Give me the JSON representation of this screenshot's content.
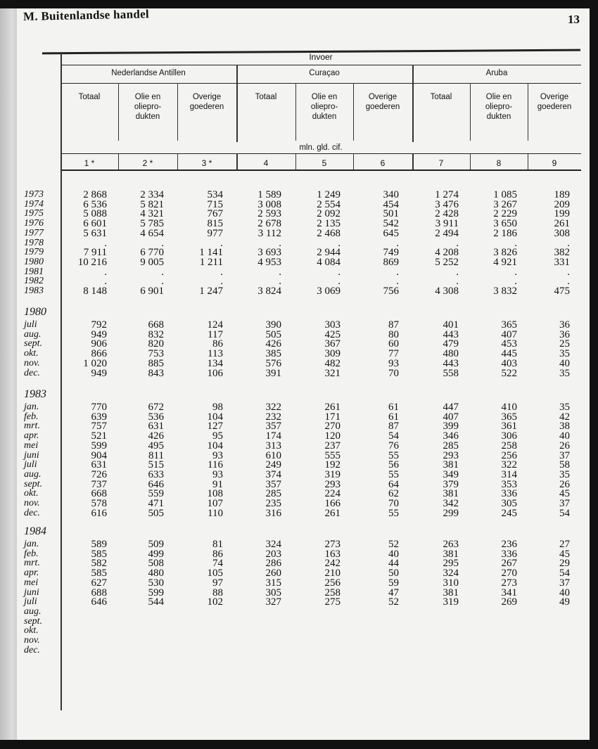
{
  "header": {
    "section": "M.  Buitenlandse  handel",
    "page_number": "13"
  },
  "table": {
    "title": "Invoer",
    "groups": [
      "Nederlandse Antillen",
      "Curaçao",
      "Aruba"
    ],
    "subcolumns": [
      "Totaal",
      "Olie en\noliepro-\ndukten",
      "Overige\ngoederen",
      "Totaal",
      "Olie en\noliepro-\ndukten",
      "Overige\ngoederen",
      "Totaal",
      "Olie en\noliepro-\ndukten",
      "Overige\ngoederen"
    ],
    "unit": "mln. gld. cif.",
    "column_numbers": [
      "1 *",
      "2 *",
      "3 *",
      "4",
      "5",
      "6",
      "7",
      "8",
      "9"
    ],
    "annual": [
      {
        "label": "1973",
        "values": [
          "2 868",
          "2 334",
          "534",
          "1 589",
          "1 249",
          "340",
          "1 274",
          "1 085",
          "189"
        ]
      },
      {
        "label": "1974",
        "values": [
          "6 536",
          "5 821",
          "715",
          "3 008",
          "2 554",
          "454",
          "3 476",
          "3 267",
          "209"
        ]
      },
      {
        "label": "1975",
        "values": [
          "5 088",
          "4 321",
          "767",
          "2 593",
          "2 092",
          "501",
          "2 428",
          "2 229",
          "199"
        ]
      },
      {
        "label": "1976",
        "values": [
          "6 601",
          "5 785",
          "815",
          "2 678",
          "2 135",
          "542",
          "3 911",
          "3 650",
          "261"
        ]
      },
      {
        "label": "1977",
        "values": [
          "5 631",
          "4 654",
          "977",
          "3 112",
          "2 468",
          "645",
          "2 494",
          "2 186",
          "308"
        ]
      },
      {
        "label": "1978",
        "values": [
          ".",
          ".",
          ".",
          ".",
          ".",
          ".",
          ".",
          ".",
          "."
        ]
      },
      {
        "label": "1979",
        "values": [
          "7 911",
          "6 770",
          "1 141",
          "3 693",
          "2 944",
          "749",
          "4 208",
          "3 826",
          "382"
        ]
      },
      {
        "label": "1980",
        "values": [
          "10 216",
          "9 005",
          "1 211",
          "4 953",
          "4 084",
          "869",
          "5 252",
          "4 921",
          "331"
        ]
      },
      {
        "label": "1981",
        "values": [
          ".",
          ".",
          ".",
          ".",
          ".",
          ".",
          ".",
          ".",
          "."
        ]
      },
      {
        "label": "1982",
        "values": [
          ".",
          ".",
          ".",
          ".",
          ".",
          ".",
          ".",
          ".",
          "."
        ]
      },
      {
        "label": "1983",
        "values": [
          "8 148",
          "6 901",
          "1 247",
          "3 824",
          "3 069",
          "756",
          "4 308",
          "3 832",
          "475"
        ]
      }
    ],
    "monthly": [
      {
        "year": "1980",
        "rows": [
          {
            "label": "juli",
            "values": [
              "792",
              "668",
              "124",
              "390",
              "303",
              "87",
              "401",
              "365",
              "36"
            ]
          },
          {
            "label": "aug.",
            "values": [
              "949",
              "832",
              "117",
              "505",
              "425",
              "80",
              "443",
              "407",
              "36"
            ]
          },
          {
            "label": "sept.",
            "values": [
              "906",
              "820",
              "86",
              "426",
              "367",
              "60",
              "479",
              "453",
              "25"
            ]
          },
          {
            "label": "okt.",
            "values": [
              "866",
              "753",
              "113",
              "385",
              "309",
              "77",
              "480",
              "445",
              "35"
            ]
          },
          {
            "label": "nov.",
            "values": [
              "1 020",
              "885",
              "134",
              "576",
              "482",
              "93",
              "443",
              "403",
              "40"
            ]
          },
          {
            "label": "dec.",
            "values": [
              "949",
              "843",
              "106",
              "391",
              "321",
              "70",
              "558",
              "522",
              "35"
            ]
          }
        ]
      },
      {
        "year": "1983",
        "rows": [
          {
            "label": "jan.",
            "values": [
              "770",
              "672",
              "98",
              "322",
              "261",
              "61",
              "447",
              "410",
              "35"
            ]
          },
          {
            "label": "feb.",
            "values": [
              "639",
              "536",
              "104",
              "232",
              "171",
              "61",
              "407",
              "365",
              "42"
            ]
          },
          {
            "label": "mrt.",
            "values": [
              "757",
              "631",
              "127",
              "357",
              "270",
              "87",
              "399",
              "361",
              "38"
            ]
          },
          {
            "label": "apr.",
            "values": [
              "521",
              "426",
              "95",
              "174",
              "120",
              "54",
              "346",
              "306",
              "40"
            ]
          },
          {
            "label": "mei",
            "values": [
              "599",
              "495",
              "104",
              "313",
              "237",
              "76",
              "285",
              "258",
              "26"
            ]
          },
          {
            "label": "juni",
            "values": [
              "904",
              "811",
              "93",
              "610",
              "555",
              "55",
              "293",
              "256",
              "37"
            ]
          },
          {
            "label": "juli",
            "values": [
              "631",
              "515",
              "116",
              "249",
              "192",
              "56",
              "381",
              "322",
              "58"
            ]
          },
          {
            "label": "aug.",
            "values": [
              "726",
              "633",
              "93",
              "374",
              "319",
              "55",
              "349",
              "314",
              "35"
            ]
          },
          {
            "label": "sept.",
            "values": [
              "737",
              "646",
              "91",
              "357",
              "293",
              "64",
              "379",
              "353",
              "26"
            ]
          },
          {
            "label": "okt.",
            "values": [
              "668",
              "559",
              "108",
              "285",
              "224",
              "62",
              "381",
              "336",
              "45"
            ]
          },
          {
            "label": "nov.",
            "values": [
              "578",
              "471",
              "107",
              "235",
              "166",
              "70",
              "342",
              "305",
              "37"
            ]
          },
          {
            "label": "dec.",
            "values": [
              "616",
              "505",
              "110",
              "316",
              "261",
              "55",
              "299",
              "245",
              "54"
            ]
          }
        ]
      },
      {
        "year": "1984",
        "rows": [
          {
            "label": "jan.",
            "values": [
              "589",
              "509",
              "81",
              "324",
              "273",
              "52",
              "263",
              "236",
              "27"
            ]
          },
          {
            "label": "feb.",
            "values": [
              "585",
              "499",
              "86",
              "203",
              "163",
              "40",
              "381",
              "336",
              "45"
            ]
          },
          {
            "label": "mrt.",
            "values": [
              "582",
              "508",
              "74",
              "286",
              "242",
              "44",
              "295",
              "267",
              "29"
            ]
          },
          {
            "label": "apr.",
            "values": [
              "585",
              "480",
              "105",
              "260",
              "210",
              "50",
              "324",
              "270",
              "54"
            ]
          },
          {
            "label": "mei",
            "values": [
              "627",
              "530",
              "97",
              "315",
              "256",
              "59",
              "310",
              "273",
              "37"
            ]
          },
          {
            "label": "juni",
            "values": [
              "688",
              "599",
              "88",
              "305",
              "258",
              "47",
              "381",
              "341",
              "40"
            ]
          },
          {
            "label": "juli",
            "values": [
              "646",
              "544",
              "102",
              "327",
              "275",
              "52",
              "319",
              "269",
              "49"
            ]
          },
          {
            "label": "aug.",
            "values": []
          },
          {
            "label": "sept.",
            "values": []
          },
          {
            "label": "okt.",
            "values": []
          },
          {
            "label": "nov.",
            "values": []
          },
          {
            "label": "dec.",
            "values": []
          }
        ]
      }
    ]
  }
}
